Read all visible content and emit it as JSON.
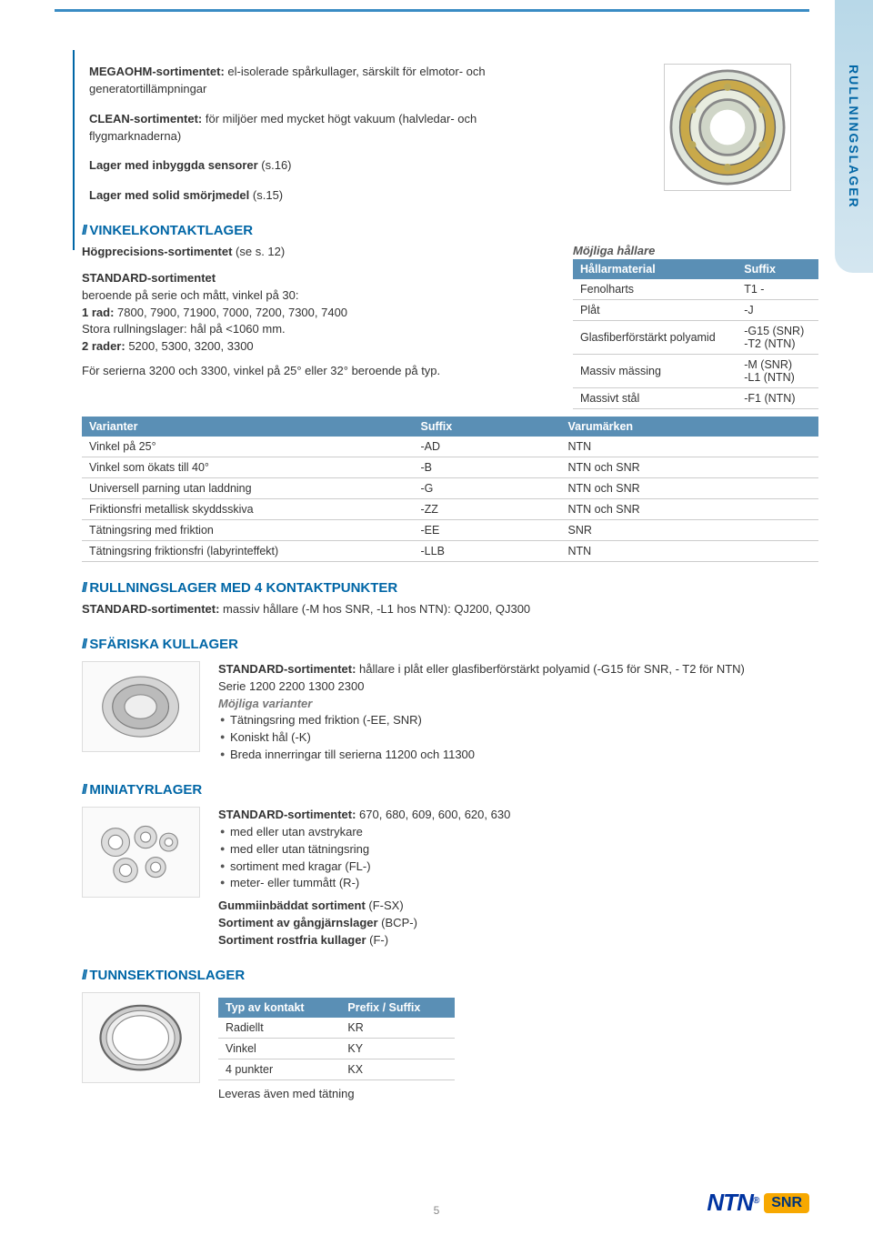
{
  "sideTab": "RULLNINGSLAGER",
  "pageNum": "5",
  "logo": {
    "ntn": "NTN",
    "snr": "SNR"
  },
  "intro": {
    "p1a": "MEGAOHM-sortimentet:",
    "p1b": " el-isolerade spårkullager, särskilt för elmotor- och generatortillämpningar",
    "p2a": "CLEAN-sortimentet:",
    "p2b": " för miljöer med mycket högt vakuum (halvledar- och flygmarknaderna)",
    "p3a": "Lager med inbyggda sensorer",
    "p3b": " (s.16)",
    "p4a": "Lager med solid smörjmedel",
    "p4b": " (s.15)"
  },
  "vinkel": {
    "heading": "VINKELKONTAKTLAGER",
    "sub1a": "Högprecisions-sortimentet",
    "sub1b": " (se s. 12)",
    "sub2": "STANDARD-sortimentet",
    "sub3": "beroende på serie och mått, vinkel på 30:",
    "sub4a": "1 rad:",
    "sub4b": " 7800, 7900, 71900, 7000, 7200, 7300, 7400",
    "sub5": "Stora rullningslager: hål på <1060 mm.",
    "sub6a": "2 rader:",
    "sub6b": " 5200, 5300, 3200, 3300",
    "sub7": "För serierna 3200 och 3300, vinkel på 25° eller 32° beroende på typ."
  },
  "hallare": {
    "title": "Möjliga hållare",
    "h1": "Hållarmaterial",
    "h2": "Suffix",
    "rows": [
      [
        "Fenolharts",
        "T1 -"
      ],
      [
        "Plåt",
        "-J"
      ],
      [
        "Glasfiberförstärkt polyamid",
        "-G15 (SNR)\n-T2 (NTN)"
      ],
      [
        "Massiv mässing",
        "-M (SNR)\n-L1 (NTN)"
      ],
      [
        "Massivt stål",
        "-F1 (NTN)"
      ]
    ]
  },
  "varianter": {
    "h1": "Varianter",
    "h2": "Suffix",
    "h3": "Varumärken",
    "rows": [
      [
        "Vinkel på 25°",
        "-AD",
        "NTN"
      ],
      [
        "Vinkel som ökats till 40°",
        "-B",
        "NTN och SNR"
      ],
      [
        "Universell parning utan laddning",
        "-G",
        "NTN och SNR"
      ],
      [
        "Friktionsfri metallisk skyddsskiva",
        "-ZZ",
        "NTN och SNR"
      ],
      [
        "Tätningsring med friktion",
        "-EE",
        "SNR"
      ],
      [
        "Tätningsring friktionsfri (labyrinteffekt)",
        "-LLB",
        "NTN"
      ]
    ]
  },
  "kontakt4": {
    "heading": "RULLNINGSLAGER MED 4 KONTAKTPUNKTER",
    "body1a": "STANDARD-sortimentet:",
    "body1b": " massiv hållare (-M hos SNR, -L1 hos NTN): QJ200, QJ300"
  },
  "sfariska": {
    "heading": "SFÄRISKA KULLAGER",
    "body1a": "STANDARD-sortimentet:",
    "body1b": " hållare i plåt eller glasfiberförstärkt polyamid (-G15 för SNR, - T2 för NTN)",
    "body2": "Serie 1200 2200 1300 2300",
    "varTitle": "Möjliga varianter",
    "li1": "Tätningsring med friktion (-EE, SNR)",
    "li2": "Koniskt hål (-K)",
    "li3": "Breda innerringar till serierna 11200 och 11300"
  },
  "mini": {
    "heading": "MINIATYRLAGER",
    "std1a": "STANDARD-sortimentet:",
    "std1b": " 670, 680, 609, 600, 620, 630",
    "li1": "med eller utan avstrykare",
    "li2": "med eller utan tätningsring",
    "li3": "sortiment med kragar (FL-)",
    "li4": "meter- eller tummått (R-)",
    "g1a": "Gummiinbäddat sortiment",
    "g1b": " (F-SX)",
    "g2a": "Sortiment av gångjärnslager",
    "g2b": " (BCP-)",
    "g3a": "Sortiment rostfria kullager",
    "g3b": " (F-)"
  },
  "tunn": {
    "heading": "TUNNSEKTIONSLAGER",
    "h1": "Typ av kontakt",
    "h2": "Prefix / Suffix",
    "rows": [
      [
        "Radiellt",
        "KR"
      ],
      [
        "Vinkel",
        "KY"
      ],
      [
        "4 punkter",
        "KX"
      ]
    ],
    "footer": "Leveras även med tätning"
  }
}
